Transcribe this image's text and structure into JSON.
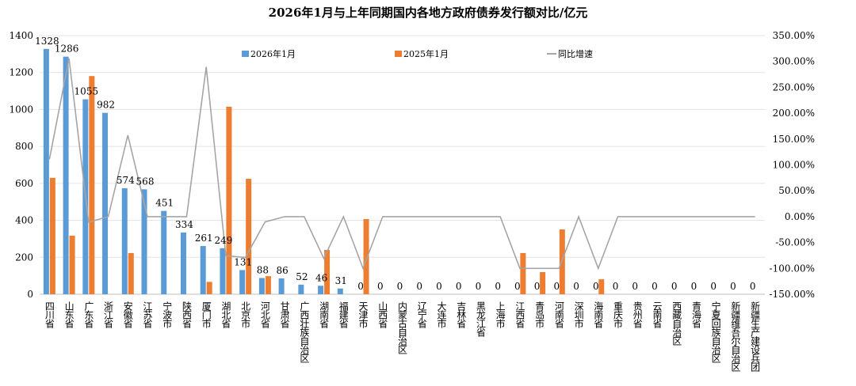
{
  "chart_data": {
    "type": "bar",
    "title": "2026年1月与上年同期国内各地方政府债券发行额对比/亿元",
    "categories": [
      "四川省",
      "山东省",
      "广东省",
      "浙江省",
      "安徽省",
      "江苏省",
      "宁波市",
      "陕西省",
      "厦门市",
      "湖北省",
      "北京市",
      "河北省",
      "甘肃省",
      "广西壮族自治区",
      "湖南省",
      "福建省",
      "天津市",
      "山西省",
      "内蒙古自治区",
      "辽宁省",
      "大连市",
      "吉林省",
      "黑龙江省",
      "上海市",
      "江西省",
      "青岛市",
      "河南省",
      "深圳市",
      "海南省",
      "重庆市",
      "贵州省",
      "云南省",
      "西藏自治区",
      "青海省",
      "宁夏回族自治区",
      "新疆维吾尔自治区",
      "新疆生产建设兵团"
    ],
    "series": [
      {
        "name": "2026年1月",
        "type": "bar",
        "color": "#5b9bd5",
        "labels": true,
        "values": [
          1328,
          1286,
          1055,
          982,
          574,
          568,
          451,
          334,
          261,
          249,
          131,
          88,
          86,
          52,
          46,
          31,
          0,
          0,
          0,
          0,
          0,
          0,
          0,
          0,
          0,
          0,
          0,
          0,
          0,
          0,
          0,
          0,
          0,
          0,
          0,
          0,
          0
        ]
      },
      {
        "name": "2025年1月",
        "type": "bar",
        "color": "#ed7d31",
        "values": [
          630,
          317,
          1181,
          0,
          223,
          0,
          0,
          0,
          67,
          1015,
          625,
          98,
          0,
          0,
          240,
          0,
          407,
          0,
          0,
          0,
          0,
          0,
          0,
          0,
          223,
          120,
          351,
          0,
          81,
          0,
          0,
          0,
          0,
          0,
          0,
          0,
          0
        ]
      },
      {
        "name": "同比增速",
        "type": "line",
        "axis": "right",
        "color": "#a5a5a5",
        "values": [
          110.8,
          305.7,
          -10.7,
          0,
          157.4,
          0,
          0,
          0,
          289.6,
          -75.5,
          -79.0,
          -10.2,
          0,
          0,
          -80.8,
          0,
          -100,
          0,
          0,
          0,
          0,
          0,
          0,
          0,
          -100,
          -100,
          -100,
          0,
          -100,
          0,
          0,
          0,
          0,
          0,
          0,
          0,
          0
        ]
      }
    ],
    "ylim": [
      0,
      1400
    ],
    "yticks": [
      "0",
      "200",
      "400",
      "600",
      "800",
      "1000",
      "1200",
      "1400"
    ],
    "y2lim": [
      -150,
      350
    ],
    "y2ticks": [
      "-150.00%",
      "-100.00%",
      "-50.00%",
      "0.00%",
      "50.00%",
      "100.00%",
      "150.00%",
      "200.00%",
      "250.00%",
      "300.00%",
      "350.00%"
    ],
    "grid": true,
    "legend": "top"
  }
}
